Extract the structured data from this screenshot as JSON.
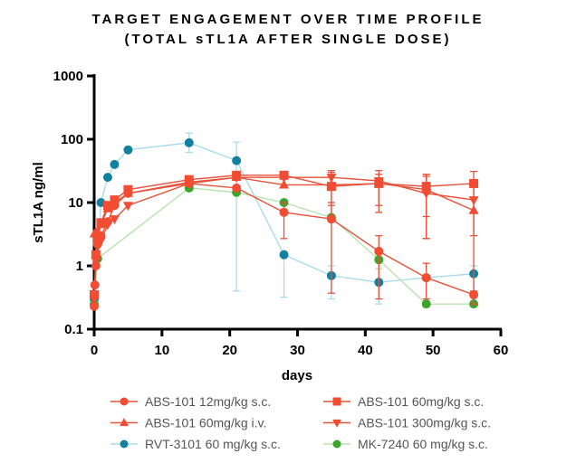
{
  "chart_data": {
    "type": "line",
    "title": [
      "TARGET ENGAGEMENT OVER TIME PROFILE",
      "(TOTAL sTL1A AFTER SINGLE DOSE)"
    ],
    "xlabel": "days",
    "ylabel": "sTL1A ng/ml",
    "xlim": [
      0,
      60
    ],
    "ylim": [
      0.1,
      1000
    ],
    "yscale": "log",
    "xticks": [
      0,
      10,
      20,
      30,
      40,
      50,
      60
    ],
    "yticks": [
      0.1,
      1,
      10,
      100,
      1000
    ],
    "ytick_labels": [
      "0.1",
      "1",
      "10",
      "100",
      "1000"
    ],
    "grid": false,
    "legend_position": "bottom",
    "series": [
      {
        "name": "ABS-101 12mg/kg s.c.",
        "marker": "circle",
        "color": "#f24c33",
        "line_color": "#e8513a",
        "x": [
          0,
          0.1,
          0.25,
          0.5,
          1,
          2,
          3,
          5,
          14,
          21,
          28,
          35,
          42,
          49,
          56
        ],
        "y": [
          0.23,
          0.5,
          1.0,
          2.2,
          3.0,
          5.0,
          9.0,
          14,
          20,
          17,
          7,
          5.5,
          1.7,
          0.65,
          0.35
        ],
        "err": {
          "28": [
            2.7,
            10
          ],
          "35": [
            0.37,
            10
          ],
          "42": [
            0.3,
            3
          ],
          "49": [
            0.3,
            1.1
          ],
          "56": [
            0.25,
            0.4
          ]
        }
      },
      {
        "name": "ABS-101 60mg/kg s.c.",
        "marker": "square",
        "color": "#f24c33",
        "line_color": "#e8513a",
        "x": [
          0,
          0.25,
          0.5,
          1,
          2,
          3,
          5,
          14,
          21,
          28,
          35,
          42,
          49,
          56
        ],
        "y": [
          0.35,
          1.5,
          2.5,
          4.8,
          9,
          11,
          16,
          23,
          27,
          27,
          18,
          20,
          18,
          20
        ],
        "err": {
          "35": [
            6,
            30
          ],
          "42": [
            7,
            32
          ],
          "49": [
            6,
            28
          ],
          "56": [
            3,
            31
          ]
        }
      },
      {
        "name": "ABS-101 60mg/kg i.v.",
        "marker": "triangle-up",
        "color": "#f24c33",
        "line_color": "#e8513a",
        "x": [
          0.04,
          0.5,
          1,
          2,
          3,
          5,
          14,
          21,
          28,
          35,
          42,
          49,
          56
        ],
        "y": [
          3.2,
          3.5,
          4.5,
          8,
          10,
          14,
          21,
          25,
          19,
          19,
          20,
          16,
          7.5
        ],
        "err": {
          "49": [
            2.7,
            26
          ],
          "56": [
            0.25,
            20
          ]
        }
      },
      {
        "name": "ABS-101 300mg/kg s.c.",
        "marker": "triangle-down",
        "color": "#f24c33",
        "line_color": "#e8513a",
        "x": [
          0,
          0.25,
          0.5,
          1,
          2,
          3,
          5,
          14,
          21,
          28,
          35,
          42,
          49,
          56
        ],
        "y": [
          0.3,
          1.2,
          2.0,
          2.5,
          4.5,
          5.5,
          9,
          20,
          25,
          25,
          25,
          22,
          14,
          11
        ],
        "err": {
          "35": [
            9,
            32
          ],
          "42": [
            9,
            28
          ],
          "49": [
            2.7,
            28
          ]
        }
      },
      {
        "name": "RVT-3101 60 mg/kg s.c.",
        "marker": "circle",
        "color": "#12809f",
        "line_color": "#a8dcee",
        "x": [
          0,
          0.5,
          1,
          2,
          3,
          5,
          14,
          21,
          28,
          35,
          42,
          49,
          56
        ],
        "y": [
          0.3,
          1.3,
          10,
          25,
          40,
          68,
          88,
          46,
          1.5,
          0.7,
          0.55,
          0.65,
          0.75
        ],
        "err": {
          "14": [
            62,
            125
          ],
          "21": [
            0.4,
            90
          ],
          "28": [
            0.32,
            1.5
          ],
          "35": [
            0.3,
            1.0
          ],
          "42": [
            0.25,
            0.9
          ],
          "56": [
            0.3,
            1.0
          ]
        }
      },
      {
        "name": "MK-7240 60 mg/kg s.c.",
        "marker": "circle",
        "color": "#3aa52a",
        "line_color": "#b8e3ad",
        "x": [
          0,
          0.5,
          14,
          21,
          28,
          35,
          42,
          49,
          56
        ],
        "y": [
          0.25,
          1.3,
          17,
          14.5,
          10,
          5.8,
          1.25,
          0.25,
          0.25
        ],
        "err": {
          "28": [
            8,
            11
          ],
          "42": [
            0.9,
            1.5
          ],
          "49": [
            0.22,
            0.3
          ]
        }
      }
    ]
  }
}
